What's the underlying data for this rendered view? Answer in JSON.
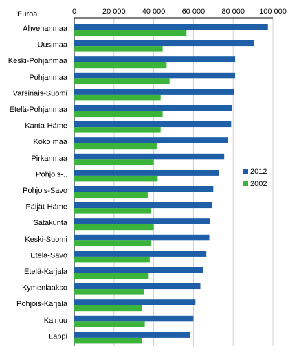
{
  "chart_data": {
    "type": "bar",
    "orientation": "horizontal",
    "ylabel": "Euroa",
    "categories": [
      "Ahvenanmaa",
      "Uusimaa",
      "Keski-Pohjanmaa",
      "Pohjanmaa",
      "Varsinais-Suomi",
      "Etelä-Pohjanmaa",
      "Kanta-Häme",
      "Koko maa",
      "Pirkanmaa",
      "Pohjois-..",
      "Pohjois-Savo",
      "Päijät-Häme",
      "Satakunta",
      "Keski-Suomi",
      "Etelä-Savo",
      "Etelä-Karjala",
      "Kymenlaakso",
      "Pohjois-Karjala",
      "Kainuu",
      "Lappi"
    ],
    "series": [
      {
        "name": "2012",
        "color": "#1f5fa8",
        "values": [
          97500,
          90500,
          81000,
          81000,
          80500,
          79500,
          79000,
          77500,
          75500,
          73000,
          70000,
          69500,
          68500,
          68000,
          66500,
          65000,
          63500,
          61000,
          60000,
          58500
        ]
      },
      {
        "name": "2002",
        "color": "#3cb43c",
        "values": [
          56500,
          44500,
          46500,
          48000,
          43500,
          44500,
          43500,
          41500,
          40000,
          42000,
          37000,
          38500,
          40000,
          38500,
          38000,
          37500,
          35000,
          34000,
          35500,
          34000
        ]
      }
    ],
    "xlim": [
      0,
      100000
    ],
    "xticks": [
      "0",
      "20 000",
      "40 000",
      "60 000",
      "80 000",
      "100 000"
    ],
    "grid": true,
    "legend_position": "right"
  }
}
